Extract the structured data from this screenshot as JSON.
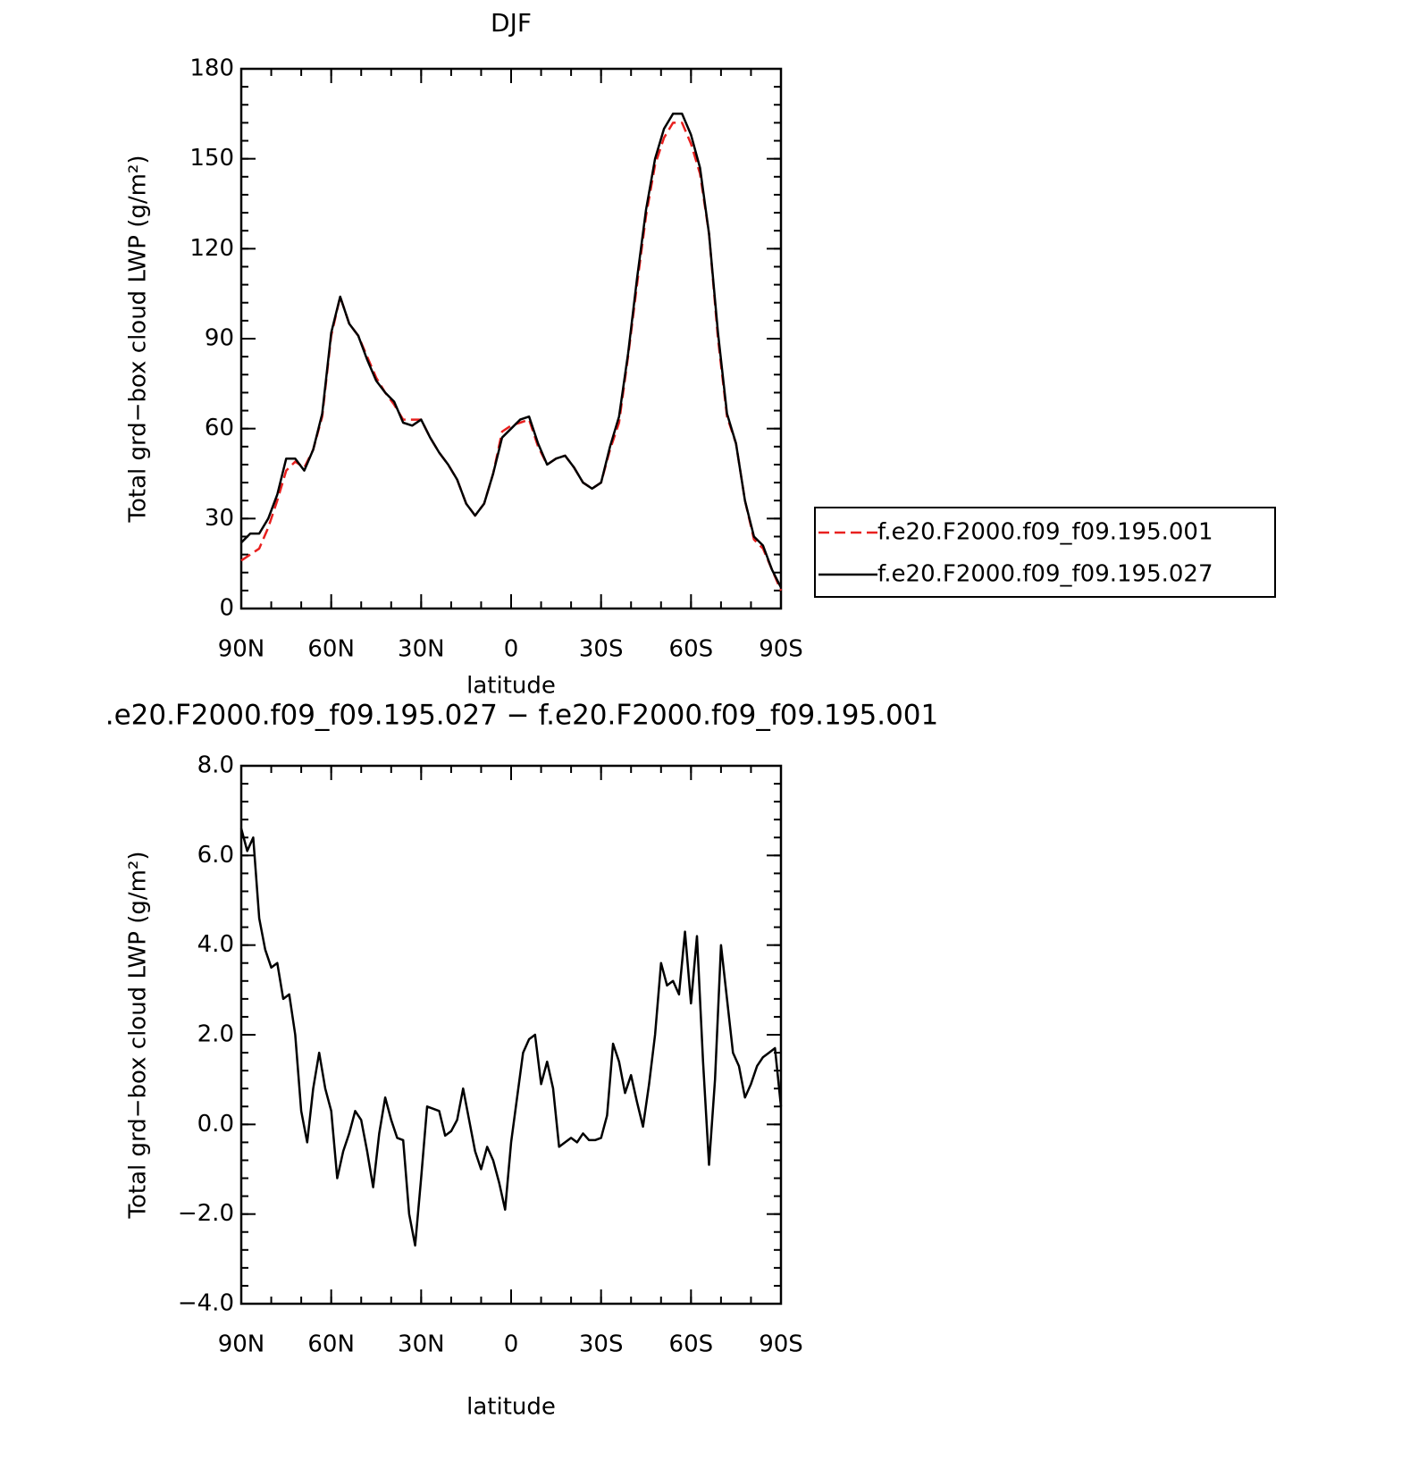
{
  "chart_data": [
    {
      "type": "line",
      "title": "DJF",
      "x_label": "latitude",
      "y_label": "Total grd−box cloud LWP (g/m²)",
      "x": [
        90,
        87,
        84,
        81,
        78,
        75,
        72,
        69,
        66,
        63,
        60,
        57,
        54,
        51,
        48,
        45,
        42,
        39,
        36,
        33,
        30,
        27,
        24,
        21,
        18,
        15,
        12,
        9,
        6,
        3,
        0,
        -3,
        -6,
        -9,
        -12,
        -15,
        -18,
        -21,
        -24,
        -27,
        -30,
        -33,
        -36,
        -39,
        -42,
        -45,
        -48,
        -51,
        -54,
        -57,
        -60,
        -63,
        -66,
        -69,
        -72,
        -75,
        -78,
        -81,
        -84,
        -87,
        -90
      ],
      "series": [
        {
          "name": "f.e20.F2000.f09_f09.195.001",
          "color": "#e8201f",
          "dashed": true,
          "values": [
            16,
            18,
            20,
            27,
            36,
            46,
            49,
            47,
            53,
            64,
            91,
            104,
            95,
            91,
            84,
            77,
            72,
            68,
            63,
            63,
            63,
            57,
            52,
            48,
            43,
            35,
            31,
            35,
            45,
            59,
            61,
            62,
            63,
            54,
            48,
            50,
            51,
            47,
            42,
            40,
            42,
            53,
            62,
            84,
            108,
            131,
            148,
            157,
            162,
            162,
            155,
            145,
            125,
            90,
            64,
            55,
            36,
            23,
            20,
            13,
            6
          ]
        },
        {
          "name": "f.e20.F2000.f09_f09.195.027",
          "color": "#000000",
          "dashed": false,
          "values": [
            22,
            25,
            25,
            30,
            38,
            50,
            50,
            46,
            53,
            65,
            92,
            104,
            95,
            91,
            83,
            76,
            72,
            69,
            62,
            61,
            63,
            57,
            52,
            48,
            43,
            35,
            31,
            35,
            45,
            57,
            60,
            63,
            64,
            55,
            48,
            50,
            51,
            47,
            42,
            40,
            42,
            54,
            64,
            85,
            110,
            133,
            150,
            160,
            165,
            165,
            158,
            147,
            125,
            92,
            65,
            55,
            36,
            24,
            21,
            13,
            7
          ]
        }
      ],
      "xlim": [
        90,
        -90
      ],
      "xticks": [
        {
          "value": 90,
          "label": "90N"
        },
        {
          "value": 60,
          "label": "60N"
        },
        {
          "value": 30,
          "label": "30N"
        },
        0,
        {
          "value": -30,
          "label": "30S"
        },
        {
          "value": -60,
          "label": "60S"
        },
        {
          "value": -90,
          "label": "90S"
        }
      ],
      "ylim": [
        0,
        180
      ],
      "yticks": [
        0,
        30,
        60,
        90,
        120,
        150,
        180
      ],
      "legend": "right"
    },
    {
      "type": "line",
      "title": ".e20.F2000.f09_f09.195.027 − f.e20.F2000.f09_f09.195.001",
      "x_label": "latitude",
      "y_label": "Total grd−box cloud LWP (g/m²)",
      "x": [
        90,
        88,
        86,
        84,
        82,
        80,
        78,
        76,
        74,
        72,
        70,
        68,
        66,
        64,
        62,
        60,
        58,
        56,
        54,
        52,
        50,
        48,
        46,
        44,
        42,
        40,
        38,
        36,
        34,
        32,
        30,
        28,
        26,
        24,
        22,
        20,
        18,
        16,
        14,
        12,
        10,
        8,
        6,
        4,
        2,
        0,
        -2,
        -4,
        -6,
        -8,
        -10,
        -12,
        -14,
        -16,
        -18,
        -20,
        -22,
        -24,
        -26,
        -28,
        -30,
        -32,
        -34,
        -36,
        -38,
        -40,
        -42,
        -44,
        -46,
        -48,
        -50,
        -52,
        -54,
        -56,
        -58,
        -60,
        -62,
        -64,
        -66,
        -68,
        -70,
        -72,
        -74,
        -76,
        -78,
        -80,
        -82,
        -84,
        -86,
        -88,
        -90
      ],
      "values": [
        6.6,
        6.1,
        6.4,
        4.6,
        3.9,
        3.5,
        3.6,
        2.8,
        2.9,
        2.0,
        0.3,
        -0.4,
        0.8,
        1.6,
        0.8,
        0.3,
        -1.2,
        -0.6,
        -0.2,
        0.3,
        0.1,
        -0.6,
        -1.4,
        -0.2,
        0.6,
        0.1,
        -0.3,
        -0.35,
        -2.0,
        -2.7,
        -1.2,
        0.4,
        0.35,
        0.3,
        -0.25,
        -0.15,
        0.1,
        0.8,
        0.1,
        -0.6,
        -1.0,
        -0.5,
        -0.8,
        -1.3,
        -1.9,
        -0.4,
        0.6,
        1.6,
        1.9,
        2.0,
        0.9,
        1.4,
        0.8,
        -0.5,
        -0.4,
        -0.3,
        -0.4,
        -0.2,
        -0.35,
        -0.35,
        -0.3,
        0.2,
        1.8,
        1.4,
        0.7,
        1.1,
        0.5,
        -0.05,
        0.9,
        2.0,
        3.6,
        3.1,
        3.2,
        2.9,
        4.3,
        2.7,
        4.2,
        1.4,
        -0.9,
        1.0,
        4.0,
        2.8,
        1.6,
        1.3,
        0.6,
        0.9,
        1.3,
        1.5,
        1.6,
        1.7,
        0.4
      ],
      "color": "#000000",
      "xlim": [
        90,
        -90
      ],
      "xticks": [
        {
          "value": 90,
          "label": "90N"
        },
        {
          "value": 60,
          "label": "60N"
        },
        {
          "value": 30,
          "label": "30N"
        },
        0,
        {
          "value": -30,
          "label": "30S"
        },
        {
          "value": -60,
          "label": "60S"
        },
        {
          "value": -90,
          "label": "90S"
        }
      ],
      "ylim": [
        -4,
        8
      ],
      "yticks": [
        {
          "value": -4,
          "label": "−4.0"
        },
        {
          "value": -2,
          "label": "−2.0"
        },
        {
          "value": 0,
          "label": "0.0"
        },
        {
          "value": 2,
          "label": "2.0"
        },
        {
          "value": 4,
          "label": "4.0"
        },
        {
          "value": 6,
          "label": "6.0"
        },
        {
          "value": 8,
          "label": "8.0"
        }
      ]
    }
  ]
}
